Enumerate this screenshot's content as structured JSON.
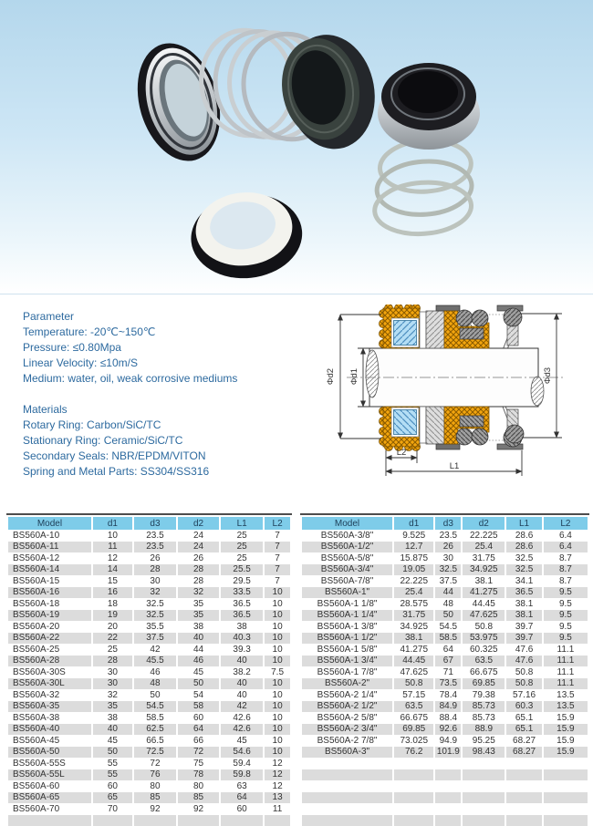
{
  "colors": {
    "header_bg": "#7ecce9",
    "row_stripe": "#dcdcdc",
    "spec_text": "#2d6a9f",
    "table_rule": "#4d4d4d",
    "diagram_orange": "#f3a50e",
    "diagram_part_blue": "#b4def5"
  },
  "specs": {
    "parameter_title": "Parameter",
    "parameter_lines": [
      "Temperature: -20℃~150℃",
      "Pressure: ≤0.80Mpa",
      "Linear Velocity: ≤10m/S",
      "Medium: water, oil, weak corrosive mediums"
    ],
    "materials_title": "Materials",
    "materials_lines": [
      "Rotary Ring: Carbon/SiC/TC",
      "Stationary Ring: Ceramic/SiC/TC",
      "Secondary Seals: NBR/EPDM/VITON",
      "Spring and Metal Parts: SS304/SS316"
    ]
  },
  "diagram": {
    "labels": {
      "d1": "Φd1",
      "d2": "Φd2",
      "d3": "Φd3",
      "l1": "L1",
      "l2": "L2"
    }
  },
  "tables": {
    "columns": [
      "Model",
      "d1",
      "d3",
      "d2",
      "L1",
      "L2"
    ],
    "metric": {
      "rows": [
        [
          "BS560A-10",
          "10",
          "23.5",
          "24",
          "25",
          "7"
        ],
        [
          "BS560A-11",
          "11",
          "23.5",
          "24",
          "25",
          "7"
        ],
        [
          "BS560A-12",
          "12",
          "26",
          "26",
          "25",
          "7"
        ],
        [
          "BS560A-14",
          "14",
          "28",
          "28",
          "25.5",
          "7"
        ],
        [
          "BS560A-15",
          "15",
          "30",
          "28",
          "29.5",
          "7"
        ],
        [
          "BS560A-16",
          "16",
          "32",
          "32",
          "33.5",
          "10"
        ],
        [
          "BS560A-18",
          "18",
          "32.5",
          "35",
          "36.5",
          "10"
        ],
        [
          "BS560A-19",
          "19",
          "32.5",
          "35",
          "36.5",
          "10"
        ],
        [
          "BS560A-20",
          "20",
          "35.5",
          "38",
          "38",
          "10"
        ],
        [
          "BS560A-22",
          "22",
          "37.5",
          "40",
          "40.3",
          "10"
        ],
        [
          "BS560A-25",
          "25",
          "42",
          "44",
          "39.3",
          "10"
        ],
        [
          "BS560A-28",
          "28",
          "45.5",
          "46",
          "40",
          "10"
        ],
        [
          "BS560A-30S",
          "30",
          "46",
          "45",
          "38.2",
          "7.5"
        ],
        [
          "BS560A-30L",
          "30",
          "48",
          "50",
          "40",
          "10"
        ],
        [
          "BS560A-32",
          "32",
          "50",
          "54",
          "40",
          "10"
        ],
        [
          "BS560A-35",
          "35",
          "54.5",
          "58",
          "42",
          "10"
        ],
        [
          "BS560A-38",
          "38",
          "58.5",
          "60",
          "42.6",
          "10"
        ],
        [
          "BS560A-40",
          "40",
          "62.5",
          "64",
          "42.6",
          "10"
        ],
        [
          "BS560A-45",
          "45",
          "66.5",
          "66",
          "45",
          "10"
        ],
        [
          "BS560A-50",
          "50",
          "72.5",
          "72",
          "54.6",
          "10"
        ],
        [
          "BS560A-55S",
          "55",
          "72",
          "75",
          "59.4",
          "12"
        ],
        [
          "BS560A-55L",
          "55",
          "76",
          "78",
          "59.8",
          "12"
        ],
        [
          "BS560A-60",
          "60",
          "80",
          "80",
          "63",
          "12"
        ],
        [
          "BS560A-65",
          "65",
          "85",
          "85",
          "64",
          "13"
        ],
        [
          "BS560A-70",
          "70",
          "92",
          "92",
          "60",
          "11"
        ],
        [
          "",
          "",
          "",
          "",
          "",
          ""
        ]
      ]
    },
    "inch": {
      "rows": [
        [
          "BS560A-3/8\"",
          "9.525",
          "23.5",
          "22.225",
          "28.6",
          "6.4"
        ],
        [
          "BS560A-1/2\"",
          "12.7",
          "26",
          "25.4",
          "28.6",
          "6.4"
        ],
        [
          "BS560A-5/8\"",
          "15.875",
          "30",
          "31.75",
          "32.5",
          "8.7"
        ],
        [
          "BS560A-3/4\"",
          "19.05",
          "32.5",
          "34.925",
          "32.5",
          "8.7"
        ],
        [
          "BS560A-7/8\"",
          "22.225",
          "37.5",
          "38.1",
          "34.1",
          "8.7"
        ],
        [
          "BS560A-1\"",
          "25.4",
          "44",
          "41.275",
          "36.5",
          "9.5"
        ],
        [
          "BS560A-1 1/8\"",
          "28.575",
          "48",
          "44.45",
          "38.1",
          "9.5"
        ],
        [
          "BS560A-1 1/4\"",
          "31.75",
          "50",
          "47.625",
          "38.1",
          "9.5"
        ],
        [
          "BS560A-1 3/8\"",
          "34.925",
          "54.5",
          "50.8",
          "39.7",
          "9.5"
        ],
        [
          "BS560A-1 1/2\"",
          "38.1",
          "58.5",
          "53.975",
          "39.7",
          "9.5"
        ],
        [
          "BS560A-1 5/8\"",
          "41.275",
          "64",
          "60.325",
          "47.6",
          "11.1"
        ],
        [
          "BS560A-1 3/4\"",
          "44.45",
          "67",
          "63.5",
          "47.6",
          "11.1"
        ],
        [
          "BS560A-1 7/8\"",
          "47.625",
          "71",
          "66.675",
          "50.8",
          "11.1"
        ],
        [
          "BS560A-2\"",
          "50.8",
          "73.5",
          "69.85",
          "50.8",
          "11.1"
        ],
        [
          "BS560A-2 1/4\"",
          "57.15",
          "78.4",
          "79.38",
          "57.16",
          "13.5"
        ],
        [
          "BS560A-2 1/2\"",
          "63.5",
          "84.9",
          "85.73",
          "60.3",
          "13.5"
        ],
        [
          "BS560A-2 5/8\"",
          "66.675",
          "88.4",
          "85.73",
          "65.1",
          "15.9"
        ],
        [
          "BS560A-2 3/4\"",
          "69.85",
          "92.6",
          "88.9",
          "65.1",
          "15.9"
        ],
        [
          "BS560A-2 7/8\"",
          "73.025",
          "94.9",
          "95.25",
          "68.27",
          "15.9"
        ],
        [
          "BS560A-3\"",
          "76.2",
          "101.9",
          "98.43",
          "68.27",
          "15.9"
        ],
        [
          "",
          "",
          "",
          "",
          "",
          ""
        ],
        [
          "",
          "",
          "",
          "",
          "",
          ""
        ],
        [
          "",
          "",
          "",
          "",
          "",
          ""
        ],
        [
          "",
          "",
          "",
          "",
          "",
          ""
        ],
        [
          "",
          "",
          "",
          "",
          "",
          ""
        ],
        [
          "",
          "",
          "",
          "",
          "",
          ""
        ]
      ]
    }
  }
}
